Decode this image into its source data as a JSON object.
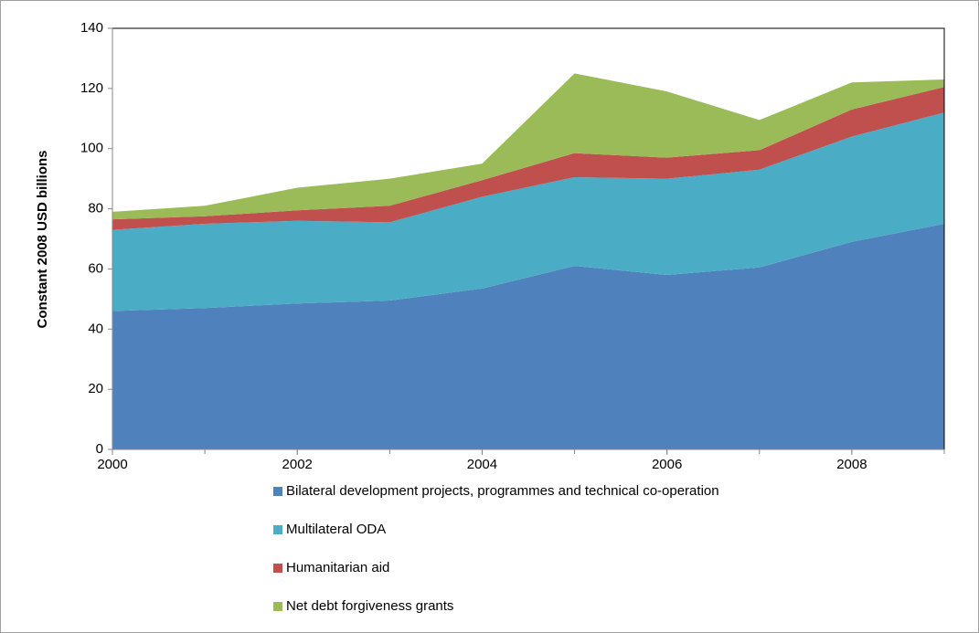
{
  "chart_data": {
    "type": "stacked_area",
    "y_axis_label": "Constant 2008 USD billions",
    "x": [
      2000,
      2001,
      2002,
      2003,
      2004,
      2005,
      2006,
      2007,
      2008,
      2009
    ],
    "xlim": [
      2000,
      2009
    ],
    "xticks": [
      2000,
      2002,
      2004,
      2006,
      2008
    ],
    "ylim": [
      0,
      140
    ],
    "yticks": [
      0,
      20,
      40,
      60,
      80,
      100,
      120,
      140
    ],
    "series": [
      {
        "name": "Bilateral development projects, programmes and technical co-operation",
        "color": "#4f81bd",
        "values": [
          46,
          47,
          48.5,
          49.5,
          53.5,
          61,
          58,
          60.5,
          69,
          75
        ]
      },
      {
        "name": "Multilateral ODA",
        "color": "#4bacc6",
        "values": [
          27,
          28,
          27.5,
          26,
          30.5,
          29.5,
          32,
          32.5,
          35,
          37
        ]
      },
      {
        "name": "Humanitarian aid",
        "color": "#c0504d",
        "values": [
          3.5,
          2.5,
          3.5,
          5.5,
          5.5,
          8,
          7,
          6.5,
          9,
          8.5
        ]
      },
      {
        "name": "Net debt forgiveness grants",
        "color": "#9bbb59",
        "values": [
          2.5,
          3.5,
          7.5,
          9,
          5.5,
          26.5,
          22,
          10,
          9,
          2.5
        ]
      }
    ]
  }
}
